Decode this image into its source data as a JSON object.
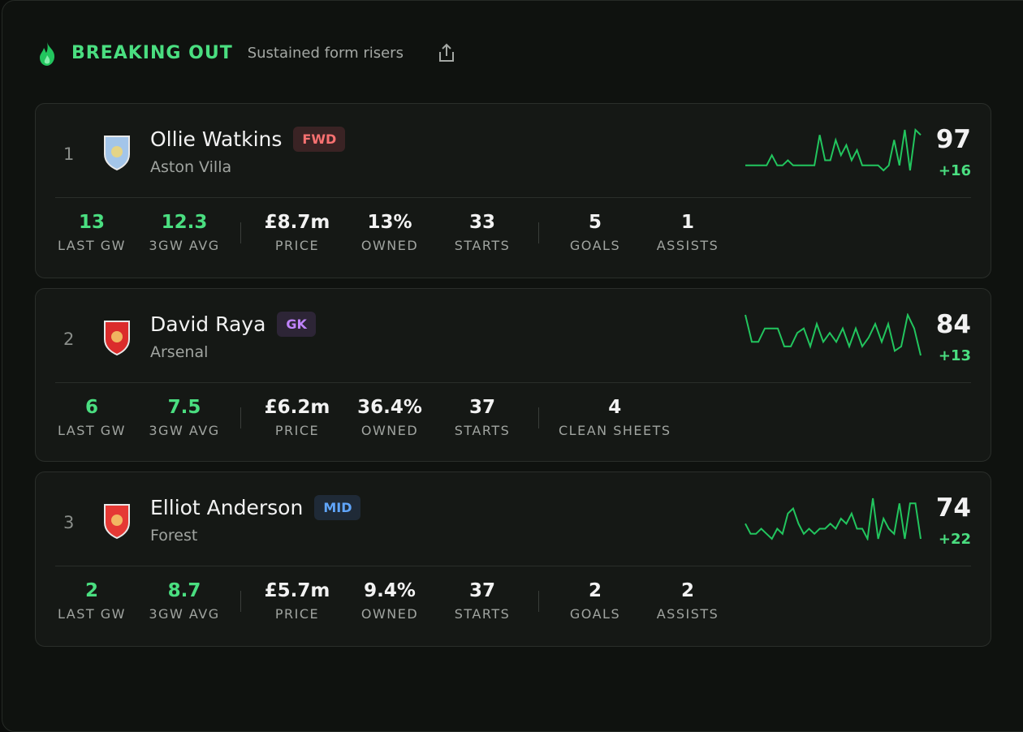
{
  "header": {
    "title": "BREAKING OUT",
    "subtitle": "Sustained form risers"
  },
  "players": [
    {
      "rank": "1",
      "name": "Ollie Watkins",
      "position": "FWD",
      "tag_color": "#f87171",
      "tag_bg": "#3a2324",
      "team": "Aston Villa",
      "crest_color": "#a3c5e9",
      "score": "97",
      "delta": "+16",
      "sparkline": [
        2,
        2,
        2,
        2,
        2,
        4,
        2,
        2,
        3,
        2,
        2,
        2,
        2,
        2,
        8,
        3,
        3,
        7,
        4,
        6,
        3,
        5,
        2,
        2,
        2,
        2,
        1,
        2,
        7,
        2,
        9,
        1,
        9,
        8
      ],
      "groups": [
        [
          {
            "value": "13",
            "label": "LAST GW"
          },
          {
            "value": "12.3",
            "label": "3GW AVG"
          }
        ],
        [
          {
            "value": "£8.7m",
            "label": "PRICE"
          },
          {
            "value": "13%",
            "label": "OWNED"
          },
          {
            "value": "33",
            "label": "STARTS"
          }
        ],
        [
          {
            "value": "5",
            "label": "GOALS"
          },
          {
            "value": "1",
            "label": "ASSISTS"
          }
        ]
      ]
    },
    {
      "rank": "2",
      "name": "David Raya",
      "position": "GK",
      "tag_color": "#c084fc",
      "tag_bg": "#2d2536",
      "team": "Arsenal",
      "crest_color": "#db2c2c",
      "score": "84",
      "delta": "+13",
      "sparkline": [
        9,
        3,
        3,
        6,
        6,
        6,
        2,
        2,
        5,
        6,
        2,
        7,
        3,
        5,
        3,
        6,
        2,
        6,
        2,
        4,
        7,
        3,
        7,
        1,
        2,
        9,
        6,
        0
      ],
      "groups": [
        [
          {
            "value": "6",
            "label": "LAST GW"
          },
          {
            "value": "7.5",
            "label": "3GW AVG"
          }
        ],
        [
          {
            "value": "£6.2m",
            "label": "PRICE"
          },
          {
            "value": "36.4%",
            "label": "OWNED"
          },
          {
            "value": "37",
            "label": "STARTS"
          }
        ],
        [
          {
            "value": "4",
            "label": "CLEAN SHEETS"
          }
        ]
      ]
    },
    {
      "rank": "3",
      "name": "Elliot Anderson",
      "position": "MID",
      "tag_color": "#60a5fa",
      "tag_bg": "#1f2a37",
      "team": "Forest",
      "crest_color": "#e53935",
      "score": "74",
      "delta": "+22",
      "sparkline": [
        4,
        2,
        2,
        3,
        2,
        1,
        3,
        2,
        6,
        7,
        4,
        2,
        3,
        2,
        3,
        3,
        4,
        3,
        5,
        4,
        6,
        3,
        3,
        1,
        9,
        1,
        5,
        3,
        2,
        8,
        1,
        8,
        8,
        1
      ],
      "groups": [
        [
          {
            "value": "2",
            "label": "LAST GW"
          },
          {
            "value": "8.7",
            "label": "3GW AVG"
          }
        ],
        [
          {
            "value": "£5.7m",
            "label": "PRICE"
          },
          {
            "value": "9.4%",
            "label": "OWNED"
          },
          {
            "value": "37",
            "label": "STARTS"
          }
        ],
        [
          {
            "value": "2",
            "label": "GOALS"
          },
          {
            "value": "2",
            "label": "ASSISTS"
          }
        ]
      ]
    }
  ]
}
